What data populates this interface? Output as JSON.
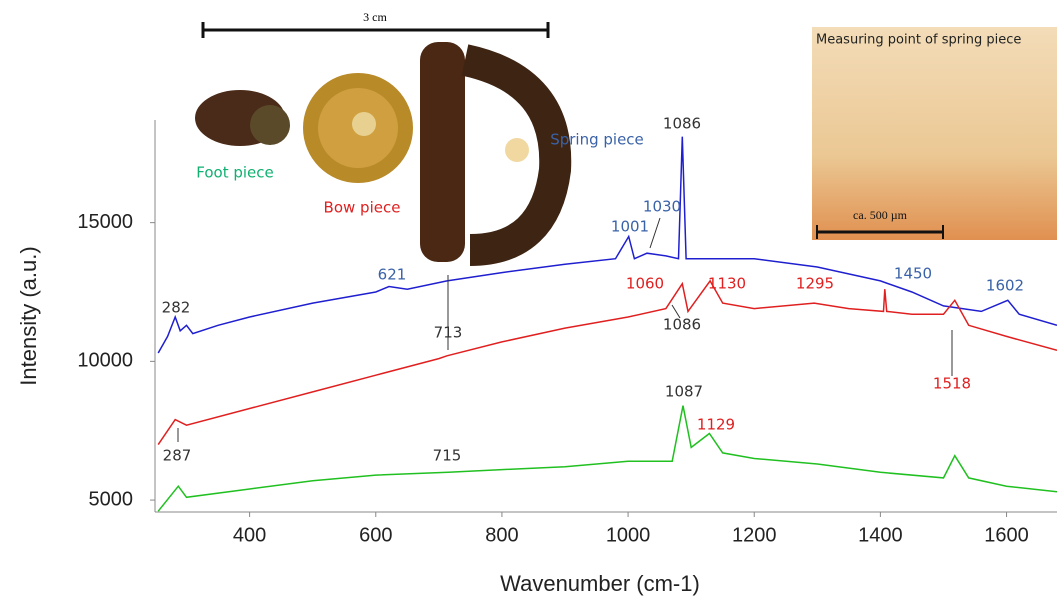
{
  "chart_data": {
    "type": "line",
    "x_label": "Wavenumber (cm-1)",
    "y_label": "Intensity (a.u.)",
    "xlim": [
      250,
      1680
    ],
    "ylim": [
      4570,
      18700
    ],
    "xticks": [
      400,
      600,
      800,
      1000,
      1200,
      1400,
      1600
    ],
    "yticks": [
      5000,
      10000,
      15000
    ],
    "series": [
      {
        "color": "#1f1fd0",
        "x": [
          255,
          270,
          282,
          290,
          300,
          310,
          350,
          400,
          500,
          600,
          621,
          650,
          713,
          800,
          900,
          980,
          1001,
          1010,
          1030,
          1060,
          1080,
          1086,
          1092,
          1150,
          1200,
          1300,
          1400,
          1450,
          1500,
          1560,
          1602,
          1620,
          1680
        ],
        "values": [
          10300,
          10900,
          11600,
          11100,
          11300,
          11000,
          11300,
          11600,
          12100,
          12500,
          12700,
          12600,
          12900,
          13200,
          13500,
          13700,
          14500,
          13700,
          13900,
          13800,
          13700,
          18100,
          13700,
          13700,
          13700,
          13400,
          12900,
          12500,
          12000,
          11800,
          12200,
          11700,
          11300
        ]
      },
      {
        "color": "#e02020",
        "x": [
          255,
          282,
          300,
          400,
          500,
          600,
          700,
          713,
          800,
          900,
          1000,
          1060,
          1086,
          1095,
          1130,
          1150,
          1200,
          1295,
          1350,
          1405,
          1407,
          1410,
          1450,
          1500,
          1518,
          1540,
          1600,
          1680
        ],
        "values": [
          7000,
          7900,
          7700,
          8300,
          8900,
          9500,
          10100,
          10200,
          10700,
          11200,
          11600,
          11900,
          12800,
          11800,
          12900,
          12100,
          11900,
          12100,
          11900,
          11800,
          12600,
          11800,
          11700,
          11700,
          12200,
          11300,
          10900,
          10400
        ]
      },
      {
        "color": "#20c020",
        "x": [
          255,
          287,
          300,
          400,
          500,
          600,
          715,
          800,
          900,
          1000,
          1070,
          1087,
          1100,
          1129,
          1150,
          1200,
          1300,
          1400,
          1500,
          1518,
          1540,
          1600,
          1680
        ],
        "values": [
          4600,
          5500,
          5100,
          5400,
          5700,
          5900,
          6000,
          6100,
          6200,
          6400,
          6400,
          8400,
          6900,
          7400,
          6700,
          6500,
          6300,
          6000,
          5800,
          6600,
          5800,
          5500,
          5300
        ]
      }
    ],
    "annotations": [
      {
        "text": "282",
        "color": "#333333"
      },
      {
        "text": "1086",
        "color": "#333333"
      },
      {
        "text": "Spring piece",
        "color": "#3a62a8"
      },
      {
        "text": "Foot piece",
        "color": "#10b070"
      },
      {
        "text": "Bow piece",
        "color": "#e02020"
      },
      {
        "text": "1001",
        "color": "#3a62a8"
      },
      {
        "text": "1030",
        "color": "#3a62a8"
      },
      {
        "text": "621",
        "color": "#3a62a8"
      },
      {
        "text": "713",
        "color": "#333333"
      },
      {
        "text": "1060",
        "color": "#e02020"
      },
      {
        "text": "1130",
        "color": "#e02020"
      },
      {
        "text": "1295",
        "color": "#e02020"
      },
      {
        "text": "1086",
        "color": "#333333"
      },
      {
        "text": "1450",
        "color": "#3a62a8"
      },
      {
        "text": "1602",
        "color": "#3a62a8"
      },
      {
        "text": "1518",
        "color": "#e02020"
      },
      {
        "text": "1087",
        "color": "#333333"
      },
      {
        "text": "1129",
        "color": "#e02020"
      },
      {
        "text": "287",
        "color": "#333333"
      },
      {
        "text": "715",
        "color": "#333333"
      }
    ],
    "insets": {
      "scale_bar": "3 cm",
      "micro_title": "Measuring point of spring piece",
      "micro_scale": "ca. 500 µm"
    }
  }
}
